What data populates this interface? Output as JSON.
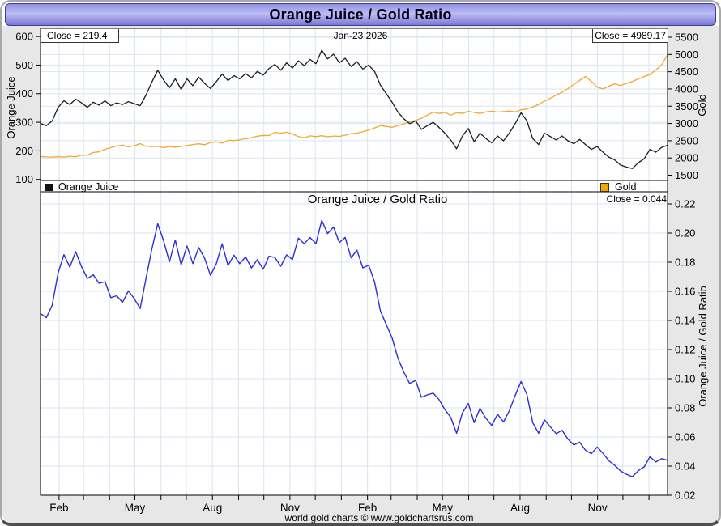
{
  "window": {
    "title": "Orange Juice / Gold Ratio",
    "footer": "world gold charts © www.goldchartsrus.com"
  },
  "top_panel": {
    "close_left": "Close = 219.4",
    "date": "Jan-23  2026",
    "close_right": "Close = 4989.17",
    "left_axis_title": "Orange Juice",
    "right_axis_title": "Gold",
    "legend": {
      "oj": "Orange Juice",
      "gold": "Gold"
    }
  },
  "bottom_panel": {
    "title": "Orange Juice  /  Gold Ratio",
    "close": "Close = 0.044",
    "right_axis_title": "Orange Juice / Gold Ratio"
  },
  "colors": {
    "oj_line": "#1c1c1c",
    "gold_line": "#f0a830",
    "ratio_line": "#2d2dd4",
    "grid": "#dbe4f1",
    "panel_bg": "#ffffff",
    "margin_bg": "#e7e7e7",
    "axis": "#000000",
    "legend_gold_fill": "#f5a800",
    "legend_oj_fill": "#111111"
  },
  "x_axis": {
    "start": "Jan-2024",
    "end": "Jan-23-2026",
    "month_ticks": [
      {
        "f": 0.0296,
        "label": "Feb"
      },
      {
        "f": 0.0686,
        "label": ""
      },
      {
        "f": 0.1102,
        "label": ""
      },
      {
        "f": 0.1505,
        "label": "May"
      },
      {
        "f": 0.1922,
        "label": ""
      },
      {
        "f": 0.2325,
        "label": ""
      },
      {
        "f": 0.2742,
        "label": "Aug"
      },
      {
        "f": 0.3159,
        "label": ""
      },
      {
        "f": 0.3562,
        "label": ""
      },
      {
        "f": 0.3978,
        "label": "Nov"
      },
      {
        "f": 0.4382,
        "label": ""
      },
      {
        "f": 0.4798,
        "label": ""
      },
      {
        "f": 0.5215,
        "label": "Feb"
      },
      {
        "f": 0.5591,
        "label": ""
      },
      {
        "f": 0.6008,
        "label": ""
      },
      {
        "f": 0.6411,
        "label": "May"
      },
      {
        "f": 0.6828,
        "label": ""
      },
      {
        "f": 0.7231,
        "label": ""
      },
      {
        "f": 0.7648,
        "label": "Aug"
      },
      {
        "f": 0.8065,
        "label": ""
      },
      {
        "f": 0.8468,
        "label": ""
      },
      {
        "f": 0.8884,
        "label": "Nov"
      },
      {
        "f": 0.9288,
        "label": ""
      },
      {
        "f": 0.9704,
        "label": ""
      }
    ]
  },
  "chart_data": [
    {
      "type": "line",
      "panel": "top",
      "title": "Orange Juice (left axis) and Gold (right axis), Jan 2024 to Jan-23 2026",
      "cadence": "weekly",
      "grid": true,
      "left_axis": {
        "label": "Orange Juice",
        "ticks": [
          600,
          500,
          400,
          300,
          200,
          100
        ],
        "range": [
          95,
          630
        ]
      },
      "right_axis": {
        "label": "Gold",
        "ticks": [
          5500,
          5000,
          4500,
          4000,
          3500,
          3000,
          2500,
          2000,
          1500
        ],
        "range": [
          1350,
          5760
        ]
      },
      "series": [
        {
          "name": "Orange Juice",
          "axis": "left",
          "color": "#1c1c1c",
          "last_close": 219.4,
          "values": [
            296,
            288,
            305,
            352,
            375,
            362,
            381,
            368,
            352,
            370,
            360,
            375,
            358,
            368,
            362,
            372,
            365,
            358,
            395,
            440,
            482,
            448,
            420,
            452,
            415,
            452,
            428,
            458,
            436,
            418,
            442,
            468,
            446,
            463,
            452,
            470,
            455,
            478,
            465,
            488,
            502,
            482,
            508,
            490,
            515,
            498,
            520,
            505,
            552,
            522,
            538,
            508,
            524,
            495,
            512,
            486,
            500,
            478,
            430,
            400,
            370,
            335,
            312,
            295,
            305,
            275,
            288,
            300,
            282,
            262,
            238,
            207,
            252,
            278,
            232,
            262,
            243,
            228,
            252,
            235,
            262,
            295,
            333,
            305,
            243,
            222,
            262,
            250,
            238,
            252,
            235,
            225,
            240,
            222,
            205,
            215,
            195,
            178,
            168,
            150,
            143,
            138,
            158,
            172,
            205,
            195,
            212,
            219.4
          ]
        },
        {
          "name": "Gold",
          "axis": "right",
          "color": "#f0a830",
          "last_close": 4989.17,
          "values": [
            2045,
            2030,
            2025,
            2040,
            2025,
            2050,
            2035,
            2080,
            2085,
            2160,
            2175,
            2250,
            2300,
            2345,
            2375,
            2320,
            2355,
            2415,
            2340,
            2330,
            2335,
            2300,
            2330,
            2315,
            2330,
            2365,
            2390,
            2410,
            2385,
            2445,
            2470,
            2430,
            2510,
            2505,
            2525,
            2560,
            2585,
            2630,
            2655,
            2650,
            2740,
            2720,
            2745,
            2695,
            2620,
            2585,
            2640,
            2620,
            2645,
            2615,
            2635,
            2625,
            2660,
            2705,
            2720,
            2760,
            2810,
            2870,
            2935,
            2915,
            2890,
            2940,
            2985,
            3050,
            3085,
            3150,
            3240,
            3330,
            3290,
            3320,
            3240,
            3310,
            3290,
            3350,
            3320,
            3290,
            3335,
            3355,
            3330,
            3345,
            3360,
            3335,
            3395,
            3420,
            3480,
            3550,
            3650,
            3730,
            3820,
            3900,
            4010,
            4130,
            4250,
            4360,
            4220,
            4050,
            4000,
            4080,
            4150,
            4100,
            4160,
            4220,
            4290,
            4360,
            4420,
            4550,
            4700,
            4989.17
          ]
        }
      ]
    },
    {
      "type": "line",
      "panel": "bottom",
      "title": "Orange Juice  /  Gold Ratio",
      "grid": true,
      "right_axis": {
        "label": "Orange Juice / Gold Ratio",
        "ticks": [
          0.22,
          0.2,
          0.18,
          0.16,
          0.14,
          0.12,
          0.1,
          0.08,
          0.06,
          0.04,
          0.02
        ],
        "range": [
          0.02,
          0.228
        ]
      },
      "series": [
        {
          "name": "Orange Juice / Gold Ratio",
          "axis": "right",
          "color": "#2d2dd4",
          "last_close": 0.044,
          "derived": "ratio of top panel series: Orange Juice values divided by Gold values"
        }
      ]
    }
  ]
}
